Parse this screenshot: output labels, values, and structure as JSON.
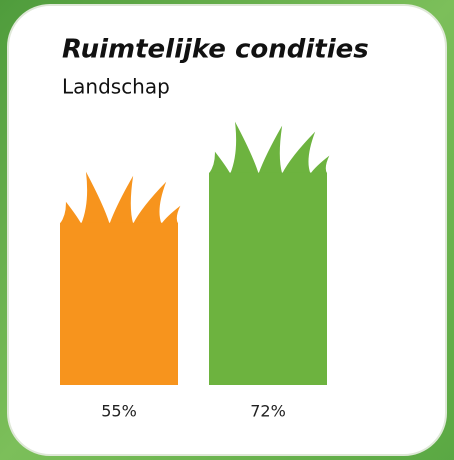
{
  "chart_data": {
    "type": "bar",
    "title": "Ruimtelijke condities",
    "subtitle": "Landschap",
    "values": [
      55,
      72
    ],
    "value_labels": [
      "55%",
      "72%"
    ],
    "colors": [
      "#f7941d",
      "#6db33f"
    ]
  }
}
